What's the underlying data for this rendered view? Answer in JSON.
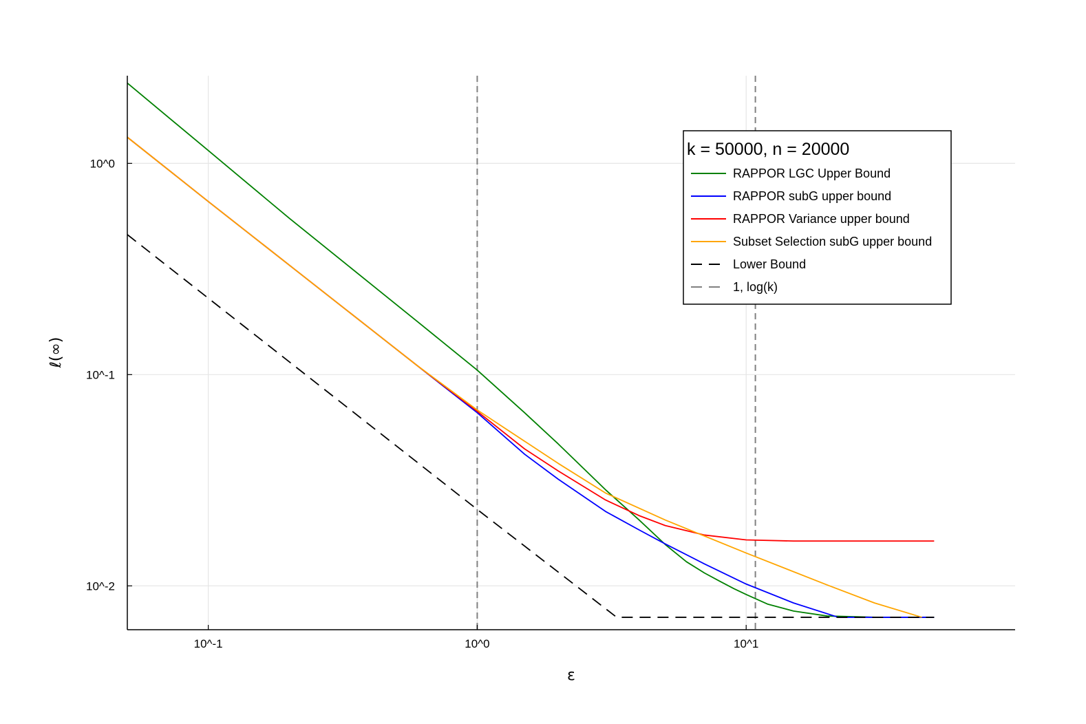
{
  "chart_data": {
    "type": "line",
    "title": "",
    "xlabel": "ε",
    "ylabel": "ℓ(∞)",
    "xscale": "log",
    "yscale": "log",
    "xlim": [
      0.05,
      100
    ],
    "ylim": [
      0.0062,
      2.6
    ],
    "grid": true,
    "legend_placement": "top-right",
    "legend_title": "k = 50000, n = 20000",
    "x_ticks": [
      {
        "value": 0.1,
        "label": "10^-1"
      },
      {
        "value": 1,
        "label": "10^0"
      },
      {
        "value": 10,
        "label": "10^1"
      }
    ],
    "y_ticks": [
      {
        "value": 0.01,
        "label": "10^-2"
      },
      {
        "value": 0.1,
        "label": "10^-1"
      },
      {
        "value": 1,
        "label": "10^0"
      }
    ],
    "series": [
      {
        "name": "RAPPOR LGC Upper Bound",
        "color": "#008000",
        "dash": "solid",
        "x": [
          0.05,
          0.1,
          0.2,
          0.4,
          0.6,
          1.0,
          1.5,
          2.0,
          3.0,
          4.0,
          5.0,
          6.0,
          7.0,
          8.0,
          9.0,
          10.0,
          12.0,
          15.0,
          20.0,
          30.0,
          50.0
        ],
        "y": [
          2.4,
          1.15,
          0.55,
          0.27,
          0.178,
          0.105,
          0.066,
          0.047,
          0.0285,
          0.0205,
          0.0157,
          0.013,
          0.0115,
          0.0105,
          0.0097,
          0.0091,
          0.0082,
          0.0076,
          0.0072,
          0.0071,
          0.0071
        ]
      },
      {
        "name": "RAPPOR subG upper bound",
        "color": "#0000ff",
        "dash": "solid",
        "x": [
          0.05,
          0.1,
          0.2,
          0.4,
          0.6,
          1.0,
          1.5,
          2.0,
          3.0,
          4.0,
          5.0,
          7.0,
          10.0,
          15.0,
          22.0,
          30.0,
          50.0
        ],
        "y": [
          1.33,
          0.66,
          0.33,
          0.165,
          0.11,
          0.066,
          0.042,
          0.032,
          0.0225,
          0.0184,
          0.0158,
          0.0127,
          0.0102,
          0.0083,
          0.0071,
          0.0071,
          0.0071
        ]
      },
      {
        "name": "RAPPOR Variance upper bound",
        "color": "#ff0000",
        "dash": "solid",
        "x": [
          0.05,
          0.1,
          0.2,
          0.4,
          0.6,
          1.0,
          1.5,
          2.0,
          3.0,
          4.0,
          5.0,
          7.0,
          10.0,
          15.0,
          20.0,
          30.0,
          50.0
        ],
        "y": [
          1.33,
          0.66,
          0.33,
          0.165,
          0.11,
          0.067,
          0.0445,
          0.035,
          0.0255,
          0.0215,
          0.0193,
          0.0174,
          0.0165,
          0.0163,
          0.0163,
          0.0163,
          0.0163
        ]
      },
      {
        "name": "Subset Selection subG upper bound",
        "color": "#ffa500",
        "dash": "solid",
        "x": [
          0.05,
          0.1,
          0.2,
          0.4,
          0.6,
          1.0,
          2.0,
          3.0,
          5.0,
          10.0,
          20.0,
          30.0,
          45.0
        ],
        "y": [
          1.33,
          0.66,
          0.33,
          0.165,
          0.11,
          0.068,
          0.038,
          0.0275,
          0.0205,
          0.0143,
          0.0101,
          0.0083,
          0.0071
        ]
      },
      {
        "name": "Lower Bound",
        "color": "#000000",
        "dash": "dashed",
        "x": [
          0.05,
          0.5,
          1.0,
          3.3,
          50.0
        ],
        "y": [
          0.46,
          0.046,
          0.023,
          0.0071,
          0.0071
        ]
      },
      {
        "name": "1, log(k)",
        "color": "#808080",
        "dash": "dashed",
        "vlines": [
          1.0,
          10.82
        ]
      }
    ]
  }
}
